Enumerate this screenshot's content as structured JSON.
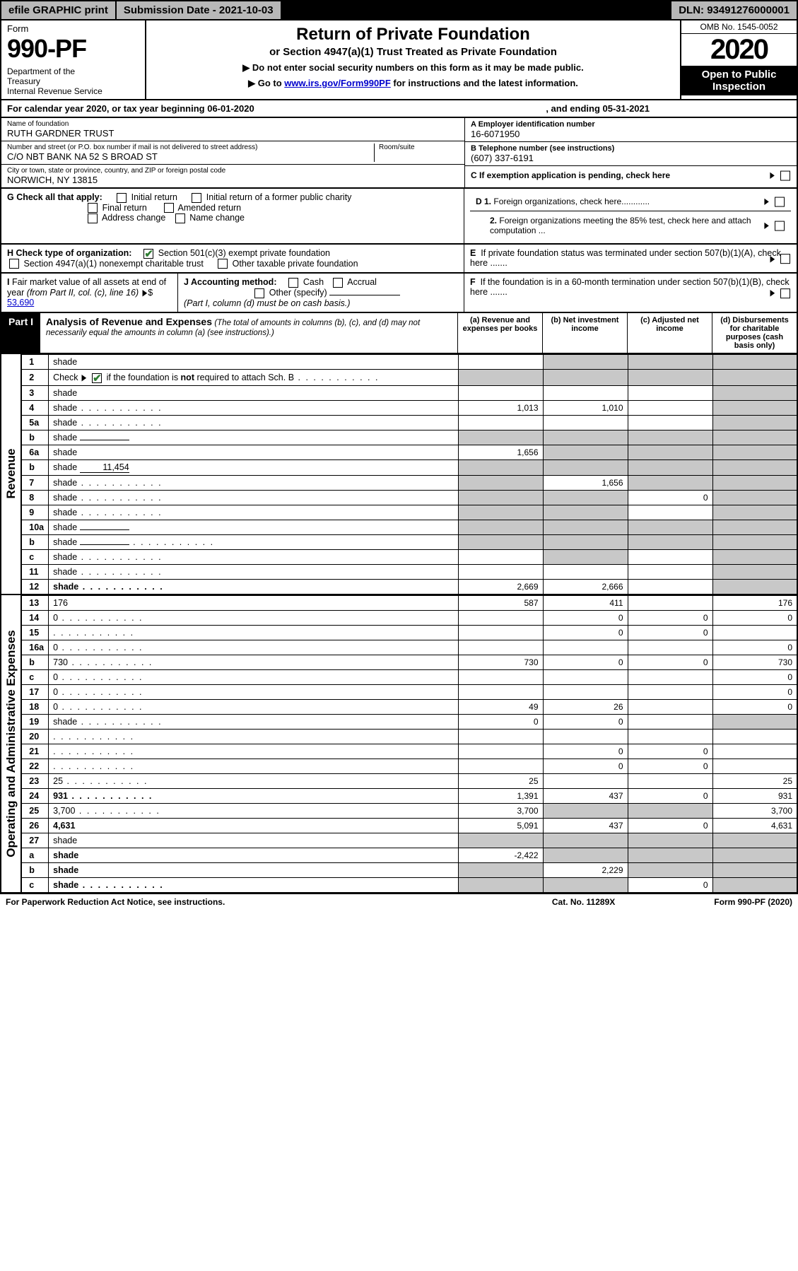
{
  "topbar": {
    "efile": "efile GRAPHIC print",
    "sub_label": "Submission Date - 2021-10-03",
    "dln": "DLN: 93491276000001"
  },
  "header": {
    "form_label": "Form",
    "form_no": "990-PF",
    "dept": "Department of the Treasury\nInternal Revenue Service",
    "title": "Return of Private Foundation",
    "subtitle": "or Section 4947(a)(1) Trust Treated as Private Foundation",
    "note1": "▶ Do not enter social security numbers on this form as it may be made public.",
    "note2_pre": "▶ Go to ",
    "note2_link": "www.irs.gov/Form990PF",
    "note2_post": " for instructions and the latest information.",
    "omb": "OMB No. 1545-0052",
    "year": "2020",
    "open": "Open to Public Inspection"
  },
  "cal": {
    "text": "For calendar year 2020, or tax year beginning 06-01-2020",
    "end": ", and ending 05-31-2021"
  },
  "info": {
    "name_lbl": "Name of foundation",
    "name": "RUTH GARDNER TRUST",
    "addr_lbl": "Number and street (or P.O. box number if mail is not delivered to street address)",
    "addr": "C/O NBT BANK NA 52 S BROAD ST",
    "room_lbl": "Room/suite",
    "city_lbl": "City or town, state or province, country, and ZIP or foreign postal code",
    "city": "NORWICH, NY  13815",
    "ein_lbl": "A Employer identification number",
    "ein": "16-6071950",
    "tel_lbl": "B Telephone number (see instructions)",
    "tel": "(607) 337-6191",
    "c": "C If exemption application is pending, check here",
    "d1": "D 1. Foreign organizations, check here............",
    "d2": "2. Foreign organizations meeting the 85% test, check here and attach computation ...",
    "e": "E  If private foundation status was terminated under section 507(b)(1)(A), check here .......",
    "f": "F  If the foundation is in a 60-month termination under section 507(b)(1)(B), check here .......",
    "g_lbl": "G Check all that apply:",
    "g_opts": [
      "Initial return",
      "Initial return of a former public charity",
      "Final return",
      "Amended return",
      "Address change",
      "Name change"
    ],
    "h_lbl": "H Check type of organization:",
    "h1": "Section 501(c)(3) exempt private foundation",
    "h2": "Section 4947(a)(1) nonexempt charitable trust",
    "h3": "Other taxable private foundation",
    "i": "I Fair market value of all assets at end of year (from Part II, col. (c), line 16)",
    "i_val": "53,690",
    "j": "J Accounting method:",
    "j_opts": [
      "Cash",
      "Accrual"
    ],
    "j_other": "Other (specify)",
    "j_note": "(Part I, column (d) must be on cash basis.)"
  },
  "part1": {
    "label": "Part I",
    "title": "Analysis of Revenue and Expenses",
    "desc": "(The total of amounts in columns (b), (c), and (d) may not necessarily equal the amounts in column (a) (see instructions).)",
    "cols": {
      "a": "(a)   Revenue and expenses per books",
      "b": "(b)   Net investment income",
      "c": "(c)   Adjusted net income",
      "d": "(d)   Disbursements for charitable purposes (cash basis only)"
    }
  },
  "sections": {
    "revenue": "Revenue",
    "expenses": "Operating and Administrative Expenses"
  },
  "rows": [
    {
      "n": "1",
      "d": "shade",
      "a": "",
      "b": "shade",
      "c": "shade"
    },
    {
      "n": "2",
      "d": "shade",
      "dots": true,
      "a": "shade",
      "b": "shade",
      "c": "shade",
      "checkmark": true
    },
    {
      "n": "3",
      "d": "shade",
      "a": "",
      "b": "",
      "c": ""
    },
    {
      "n": "4",
      "d": "shade",
      "dots": true,
      "a": "1,013",
      "b": "1,010",
      "c": ""
    },
    {
      "n": "5a",
      "d": "shade",
      "dots": true,
      "a": "",
      "b": "",
      "c": ""
    },
    {
      "n": "b",
      "d": "shade",
      "inline": "",
      "a": "shade",
      "b": "shade",
      "c": "shade"
    },
    {
      "n": "6a",
      "d": "shade",
      "a": "1,656",
      "b": "shade",
      "c": "shade"
    },
    {
      "n": "b",
      "d": "shade",
      "inline": "11,454",
      "a": "shade",
      "b": "shade",
      "c": "shade"
    },
    {
      "n": "7",
      "d": "shade",
      "dots": true,
      "a": "shade",
      "b": "1,656",
      "c": "shade"
    },
    {
      "n": "8",
      "d": "shade",
      "dots": true,
      "a": "shade",
      "b": "shade",
      "c": "0"
    },
    {
      "n": "9",
      "d": "shade",
      "dots": true,
      "a": "shade",
      "b": "shade",
      "c": ""
    },
    {
      "n": "10a",
      "d": "shade",
      "inline": "",
      "a": "shade",
      "b": "shade",
      "c": "shade"
    },
    {
      "n": "b",
      "d": "shade",
      "dots": true,
      "inline": "",
      "a": "shade",
      "b": "shade",
      "c": "shade"
    },
    {
      "n": "c",
      "d": "shade",
      "dots": true,
      "a": "",
      "b": "shade",
      "c": ""
    },
    {
      "n": "11",
      "d": "shade",
      "dots": true,
      "a": "",
      "b": "",
      "c": ""
    },
    {
      "n": "12",
      "d": "shade",
      "dots": true,
      "bold": true,
      "a": "2,669",
      "b": "2,666",
      "c": ""
    }
  ],
  "expense_rows": [
    {
      "n": "13",
      "d": "176",
      "a": "587",
      "b": "411",
      "c": ""
    },
    {
      "n": "14",
      "d": "0",
      "dots": true,
      "a": "",
      "b": "0",
      "c": "0"
    },
    {
      "n": "15",
      "d": "",
      "dots": true,
      "a": "",
      "b": "0",
      "c": "0"
    },
    {
      "n": "16a",
      "d": "0",
      "dots": true,
      "a": "",
      "b": "",
      "c": ""
    },
    {
      "n": "b",
      "d": "730",
      "dots": true,
      "a": "730",
      "b": "0",
      "c": "0"
    },
    {
      "n": "c",
      "d": "0",
      "dots": true,
      "a": "",
      "b": "",
      "c": ""
    },
    {
      "n": "17",
      "d": "0",
      "dots": true,
      "a": "",
      "b": "",
      "c": ""
    },
    {
      "n": "18",
      "d": "0",
      "dots": true,
      "a": "49",
      "b": "26",
      "c": ""
    },
    {
      "n": "19",
      "d": "shade",
      "dots": true,
      "a": "0",
      "b": "0",
      "c": ""
    },
    {
      "n": "20",
      "d": "",
      "dots": true,
      "a": "",
      "b": "",
      "c": ""
    },
    {
      "n": "21",
      "d": "",
      "dots": true,
      "a": "",
      "b": "0",
      "c": "0"
    },
    {
      "n": "22",
      "d": "",
      "dots": true,
      "a": "",
      "b": "0",
      "c": "0"
    },
    {
      "n": "23",
      "d": "25",
      "dots": true,
      "a": "25",
      "b": "",
      "c": ""
    },
    {
      "n": "24",
      "d": "931",
      "dots": true,
      "bold": true,
      "a": "1,391",
      "b": "437",
      "c": "0"
    },
    {
      "n": "25",
      "d": "3,700",
      "dots": true,
      "a": "3,700",
      "b": "shade",
      "c": "shade"
    },
    {
      "n": "26",
      "d": "4,631",
      "bold": true,
      "a": "5,091",
      "b": "437",
      "c": "0"
    },
    {
      "n": "27",
      "d": "shade",
      "a": "shade",
      "b": "shade",
      "c": "shade"
    },
    {
      "n": "a",
      "d": "shade",
      "bold": true,
      "a": "-2,422",
      "b": "shade",
      "c": "shade"
    },
    {
      "n": "b",
      "d": "shade",
      "bold": true,
      "a": "shade",
      "b": "2,229",
      "c": "shade"
    },
    {
      "n": "c",
      "d": "shade",
      "dots": true,
      "bold": true,
      "a": "shade",
      "b": "shade",
      "c": "0"
    }
  ],
  "footer": {
    "left": "For Paperwork Reduction Act Notice, see instructions.",
    "mid": "Cat. No. 11289X",
    "right": "Form 990-PF (2020)"
  },
  "colors": {
    "topbar_bg": "#b8b8b8",
    "shade": "#c8c8c8",
    "link": "#0000cc",
    "check": "#2e7d32"
  }
}
